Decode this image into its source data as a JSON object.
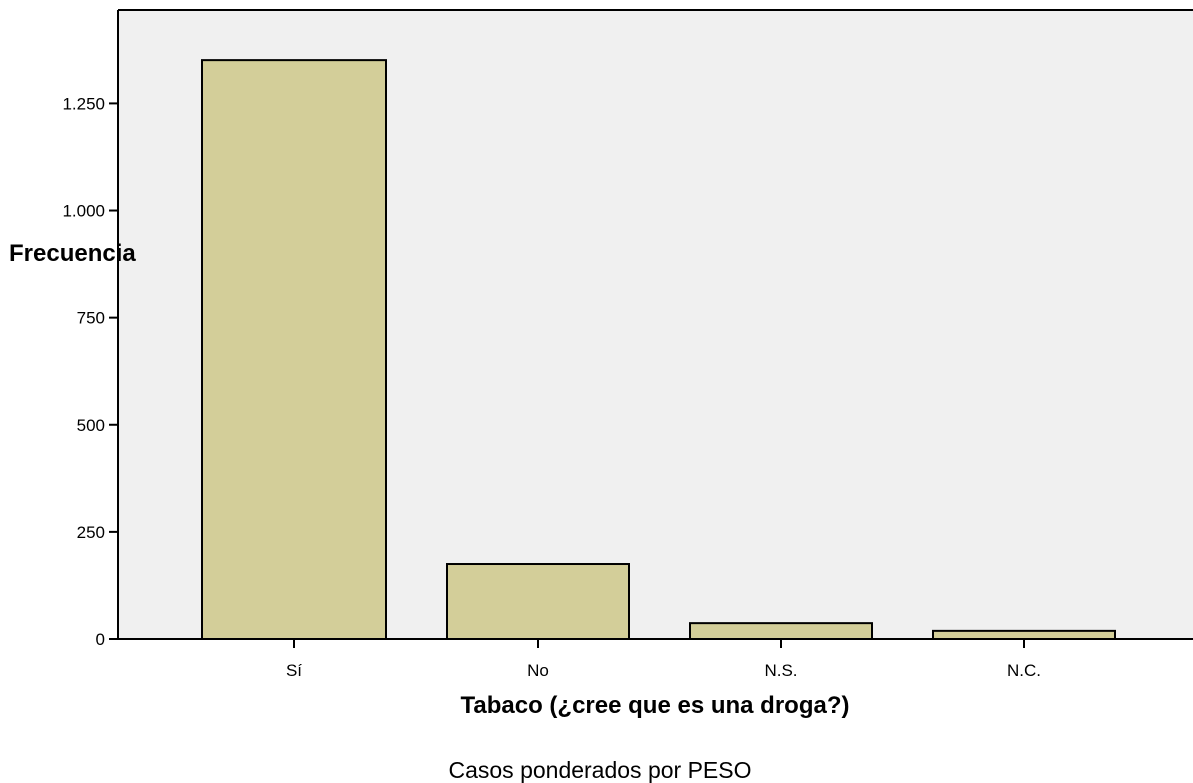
{
  "chart_data": {
    "type": "bar",
    "title": "",
    "xlabel": "Tabaco (¿cree que es una droga?)",
    "ylabel": "Frecuencia",
    "categories": [
      "Sí",
      "No",
      "N.S.",
      "N.C."
    ],
    "values": [
      1351,
      175,
      37,
      19
    ],
    "ylim": [
      0,
      1468
    ],
    "yticks": [
      0,
      250,
      500,
      750,
      1000,
      1250
    ],
    "ytick_labels": [
      "0",
      "250",
      "500",
      "750",
      "1.000",
      "1.250"
    ],
    "grid": false,
    "legend": "none",
    "footnote": "Casos ponderados por PESO",
    "colors": {
      "bar_fill": "#d3ce99",
      "bar_stroke": "#000000",
      "plot_background": "#f0f0f0",
      "axis": "#000000"
    }
  }
}
